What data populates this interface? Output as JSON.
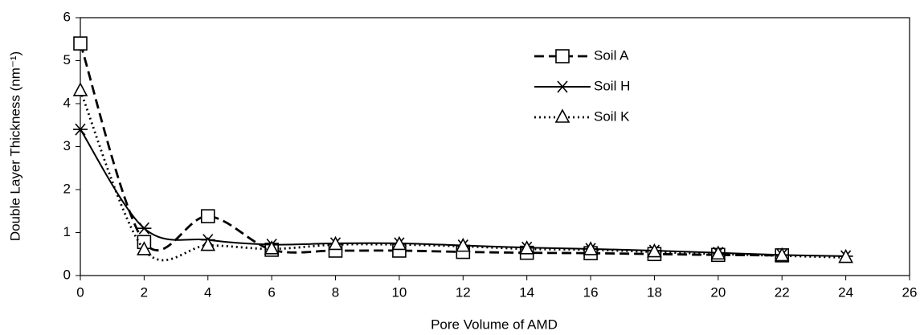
{
  "chart_data": {
    "type": "line",
    "x_label": "Pore Volume of AMD",
    "y_label": "Double Layer Thickness (nm⁻¹)",
    "x": [
      0,
      2,
      4,
      6,
      8,
      10,
      12,
      14,
      16,
      18,
      20,
      22,
      24
    ],
    "series": [
      {
        "name": "Soil A",
        "color": "#000000",
        "dash": "dashed",
        "marker": "square",
        "values": [
          5.4,
          0.78,
          1.38,
          0.6,
          0.58,
          0.58,
          0.55,
          0.53,
          0.52,
          0.5,
          0.48,
          0.47,
          null
        ]
      },
      {
        "name": "Soil H",
        "color": "#000000",
        "dash": "solid",
        "marker": "star",
        "values": [
          3.4,
          1.1,
          0.83,
          0.72,
          0.75,
          0.75,
          0.7,
          0.65,
          0.62,
          0.58,
          0.53,
          0.48,
          0.45
        ]
      },
      {
        "name": "Soil K",
        "color": "#000000",
        "dash": "dotted",
        "marker": "triangle",
        "values": [
          4.3,
          0.6,
          0.7,
          0.62,
          0.72,
          0.72,
          0.68,
          0.62,
          0.6,
          0.55,
          0.5,
          0.46,
          0.42
        ]
      }
    ],
    "xlim": [
      0,
      26
    ],
    "xticks": [
      0,
      2,
      4,
      6,
      8,
      10,
      12,
      14,
      16,
      18,
      20,
      22,
      24,
      26
    ],
    "ylim": [
      0,
      6
    ],
    "yticks": [
      0,
      1,
      2,
      3,
      4,
      5,
      6
    ],
    "grid": false,
    "smooth": true,
    "legend": "top-right"
  }
}
